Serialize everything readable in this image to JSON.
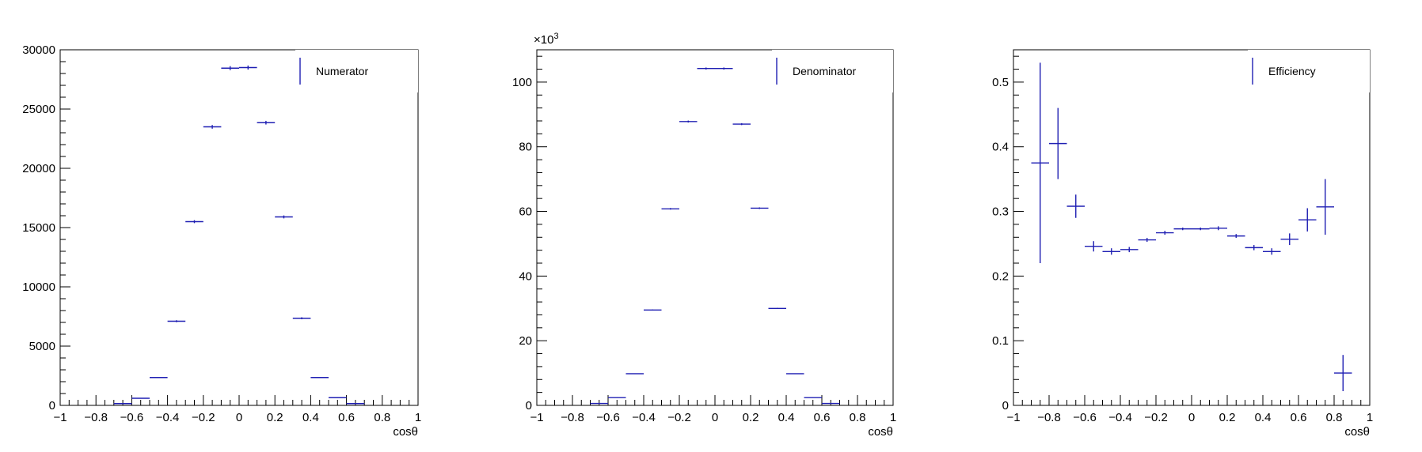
{
  "chart_data": [
    {
      "type": "scatter",
      "xlabel": "cosθ",
      "ylabel": "",
      "xlim": [
        -1,
        1
      ],
      "ylim": [
        0,
        30000
      ],
      "x_tick_labels": [
        "−1",
        "−0.8",
        "−0.6",
        "−0.4",
        "−0.2",
        "0",
        "0.2",
        "0.4",
        "0.6",
        "0.8",
        "1"
      ],
      "y_tick_labels": [
        "0",
        "5000",
        "10000",
        "15000",
        "20000",
        "25000",
        "30000"
      ],
      "y_ticks": [
        0,
        5000,
        10000,
        15000,
        20000,
        25000,
        30000
      ],
      "legend": {
        "label": "Numerator",
        "position": "top-right"
      },
      "series": [
        {
          "name": "Numerator",
          "color": "#1f1fb3",
          "x": [
            -0.65,
            -0.55,
            -0.45,
            -0.35,
            -0.25,
            -0.15,
            -0.05,
            0.05,
            0.15,
            0.25,
            0.35,
            0.45,
            0.55,
            0.65
          ],
          "y": [
            150,
            600,
            2350,
            7100,
            15500,
            23500,
            28450,
            28500,
            23850,
            15900,
            7350,
            2350,
            650,
            150
          ],
          "yerr": [
            15,
            30,
            50,
            85,
            125,
            155,
            170,
            170,
            155,
            125,
            85,
            50,
            30,
            15
          ]
        }
      ]
    },
    {
      "type": "scatter",
      "xlabel": "cosθ",
      "ylabel": "",
      "multiplier_label": "×10",
      "multiplier_exp": "3",
      "xlim": [
        -1,
        1
      ],
      "ylim": [
        0,
        110
      ],
      "x_tick_labels": [
        "−1",
        "−0.8",
        "−0.6",
        "−0.4",
        "−0.2",
        "0",
        "0.2",
        "0.4",
        "0.6",
        "0.8",
        "1"
      ],
      "y_tick_labels": [
        "0",
        "20",
        "40",
        "60",
        "80",
        "100"
      ],
      "y_ticks": [
        0,
        20,
        40,
        60,
        80,
        100
      ],
      "legend": {
        "label": "Denominator",
        "position": "top-right"
      },
      "series": [
        {
          "name": "Denominator",
          "color": "#1f1fb3",
          "x": [
            -0.65,
            -0.55,
            -0.45,
            -0.35,
            -0.25,
            -0.15,
            -0.05,
            0.05,
            0.15,
            0.25,
            0.35,
            0.45,
            0.55,
            0.65
          ],
          "y": [
            0.6,
            2.4,
            9.8,
            29.5,
            60.8,
            87.8,
            104.2,
            104.2,
            87.0,
            61.0,
            30.0,
            9.8,
            2.4,
            0.6
          ],
          "yerr": [
            0.03,
            0.05,
            0.1,
            0.17,
            0.25,
            0.3,
            0.32,
            0.32,
            0.3,
            0.25,
            0.17,
            0.1,
            0.05,
            0.03
          ]
        }
      ]
    },
    {
      "type": "scatter",
      "xlabel": "cosθ",
      "ylabel": "",
      "xlim": [
        -1,
        1
      ],
      "ylim": [
        0,
        0.55
      ],
      "x_tick_labels": [
        "−1",
        "−0.8",
        "−0.6",
        "−0.4",
        "−0.2",
        "0",
        "0.2",
        "0.4",
        "0.6",
        "0.8",
        "1"
      ],
      "y_tick_labels": [
        "0",
        "0.1",
        "0.2",
        "0.3",
        "0.4",
        "0.5"
      ],
      "y_ticks": [
        0,
        0.1,
        0.2,
        0.3,
        0.4,
        0.5
      ],
      "legend": {
        "label": "Efficiency",
        "position": "top-right"
      },
      "series": [
        {
          "name": "Efficiency",
          "color": "#1f1fb3",
          "x": [
            -0.85,
            -0.75,
            -0.65,
            -0.55,
            -0.45,
            -0.35,
            -0.25,
            -0.15,
            -0.05,
            0.05,
            0.15,
            0.25,
            0.35,
            0.45,
            0.55,
            0.65,
            0.75,
            0.85
          ],
          "y": [
            0.375,
            0.405,
            0.308,
            0.246,
            0.238,
            0.241,
            0.256,
            0.267,
            0.273,
            0.273,
            0.274,
            0.262,
            0.244,
            0.238,
            0.257,
            0.287,
            0.307,
            0.05
          ],
          "yerr": [
            0.155,
            0.055,
            0.018,
            0.008,
            0.005,
            0.004,
            0.003,
            0.003,
            0.002,
            0.002,
            0.003,
            0.003,
            0.004,
            0.005,
            0.009,
            0.018,
            0.043,
            0.028
          ]
        }
      ]
    }
  ]
}
